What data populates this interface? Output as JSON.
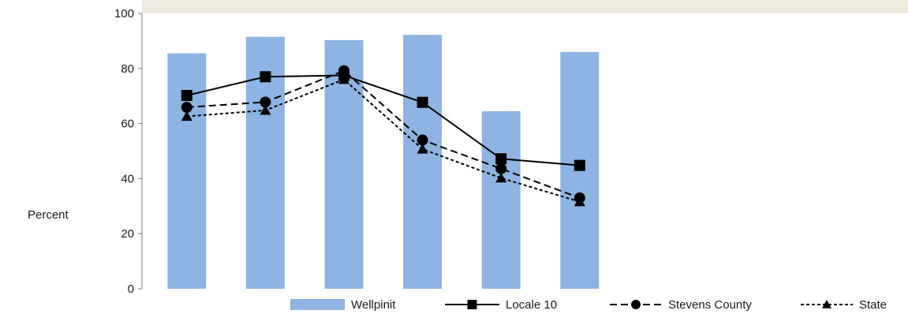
{
  "chart_data": {
    "type": "bar",
    "ylabel": "Percent",
    "ylim": [
      0,
      100
    ],
    "yticks": [
      0,
      20,
      40,
      60,
      80,
      100
    ],
    "grid": false,
    "legend_position": "bottom",
    "x_count": 6,
    "series": [
      {
        "name": "Wellpinit",
        "kind": "bar",
        "color": "#8DB4E2",
        "values": [
          85.5,
          91.5,
          90.3,
          92.2,
          64.5,
          86.0
        ]
      },
      {
        "name": "Locale 10",
        "kind": "line",
        "line_style": "solid",
        "marker": "square",
        "color": "#000000",
        "values": [
          70.2,
          77.0,
          77.5,
          67.7,
          47.2,
          44.8
        ]
      },
      {
        "name": "Stevens County",
        "kind": "line",
        "line_style": "dashed",
        "marker": "circle",
        "color": "#000000",
        "values": [
          65.9,
          67.8,
          79.2,
          54.0,
          43.6,
          33.0
        ]
      },
      {
        "name": "State",
        "kind": "line",
        "line_style": "dotted",
        "marker": "triangle",
        "color": "#000000",
        "values": [
          62.6,
          64.8,
          76.0,
          50.7,
          40.2,
          31.6
        ]
      }
    ],
    "title_banner_color": "#EEECE1"
  }
}
